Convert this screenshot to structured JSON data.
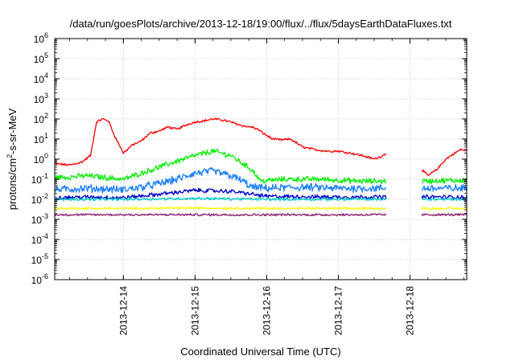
{
  "chart_data": {
    "type": "line",
    "title": "/data/run/goesPlots/archive/2013-12-18/19:00/flux/../flux/5daysEarthDataFluxes.txt",
    "xlabel": "Coordinated Universal Time (UTC)",
    "ylabel_parts": [
      "protons/cm",
      "2",
      "-s-sr-MeV"
    ],
    "y_scale": "log",
    "ylim": [
      1e-06,
      1000000.0
    ],
    "xlim": [
      "2013-12-13 01:00",
      "2013-12-18 19:00"
    ],
    "grid": true,
    "legend": "none",
    "x_ticks": [
      "2013-12-14",
      "2013-12-15",
      "2013-12-16",
      "2013-12-17",
      "2013-12-18"
    ],
    "y_ticks": [
      {
        "base": "10",
        "exp": "-6"
      },
      {
        "base": "10",
        "exp": "-5"
      },
      {
        "base": "10",
        "exp": "-4"
      },
      {
        "base": "10",
        "exp": "-3"
      },
      {
        "base": "10",
        "exp": "-2"
      },
      {
        "base": "10",
        "exp": "-1"
      },
      {
        "base": "10",
        "exp": "0"
      },
      {
        "base": "10",
        "exp": "1"
      },
      {
        "base": "10",
        "exp": "2"
      },
      {
        "base": "10",
        "exp": "3"
      },
      {
        "base": "10",
        "exp": "4"
      },
      {
        "base": "10",
        "exp": "5"
      },
      {
        "base": "10",
        "exp": "6"
      }
    ],
    "data_gap": [
      "2013-12-17 16:00",
      "2013-12-18 04:00"
    ],
    "series": [
      {
        "color": "#ff0000",
        "noise": 0.05,
        "x": [
          "2013-12-13 01:00",
          "2013-12-13 06:00",
          "2013-12-13 10:00",
          "2013-12-13 13:00",
          "2013-12-13 15:00",
          "2013-12-13 17:00",
          "2013-12-13 19:00",
          "2013-12-13 21:00",
          "2013-12-13 23:00",
          "2013-12-14 00:00",
          "2013-12-14 03:00",
          "2013-12-14 06:00",
          "2013-12-14 09:00",
          "2013-12-14 12:00",
          "2013-12-14 15:00",
          "2013-12-14 18:00",
          "2013-12-14 21:00",
          "2013-12-15 00:00",
          "2013-12-15 03:00",
          "2013-12-15 06:00",
          "2013-12-15 09:00",
          "2013-12-15 12:00",
          "2013-12-15 15:00",
          "2013-12-15 18:00",
          "2013-12-15 19:00",
          "2013-12-15 21:00",
          "2013-12-16 00:00",
          "2013-12-16 02:00",
          "2013-12-16 05:00",
          "2013-12-16 08:00",
          "2013-12-16 12:00",
          "2013-12-16 16:00",
          "2013-12-16 20:00",
          "2013-12-17 00:00",
          "2013-12-17 04:00",
          "2013-12-17 08:00",
          "2013-12-17 12:00",
          "2013-12-17 15:00",
          "2013-12-17 16:00",
          "2013-12-18 04:00",
          "2013-12-18 06:00",
          "2013-12-18 09:00",
          "2013-12-18 12:00",
          "2013-12-18 15:00",
          "2013-12-18 17:00",
          "2013-12-18 19:00"
        ],
        "y": [
          0.6,
          0.5,
          0.7,
          1.5,
          70,
          100,
          80,
          15,
          4,
          2,
          5,
          8,
          20,
          25,
          40,
          30,
          50,
          70,
          80,
          100,
          90,
          70,
          50,
          40,
          40,
          30,
          15,
          10,
          9,
          10,
          4,
          3,
          2.5,
          2.5,
          2,
          1.5,
          1.0,
          1.5,
          2.0,
          0.3,
          0.15,
          0.3,
          1,
          2,
          3,
          2.5
        ]
      },
      {
        "color": "#00ee00",
        "noise": 0.12,
        "x": [
          "2013-12-13 01:00",
          "2013-12-13 06:00",
          "2013-12-13 12:00",
          "2013-12-13 18:00",
          "2013-12-14 00:00",
          "2013-12-14 06:00",
          "2013-12-14 12:00",
          "2013-12-14 18:00",
          "2013-12-15 00:00",
          "2013-12-15 06:00",
          "2013-12-15 12:00",
          "2013-12-15 16:00",
          "2013-12-15 19:00",
          "2013-12-15 22:00",
          "2013-12-16 06:00",
          "2013-12-16 18:00",
          "2013-12-17 06:00",
          "2013-12-17 16:00",
          "2013-12-18 04:00",
          "2013-12-18 19:00"
        ],
        "y": [
          0.12,
          0.13,
          0.15,
          0.12,
          0.1,
          0.2,
          0.4,
          0.8,
          1.5,
          2.5,
          1.5,
          0.6,
          0.3,
          0.08,
          0.1,
          0.1,
          0.08,
          0.08,
          0.08,
          0.09
        ]
      },
      {
        "color": "#1a7fff",
        "noise": 0.17,
        "x": [
          "2013-12-13 01:00",
          "2013-12-13 12:00",
          "2013-12-14 00:00",
          "2013-12-14 06:00",
          "2013-12-14 12:00",
          "2013-12-14 18:00",
          "2013-12-15 00:00",
          "2013-12-15 06:00",
          "2013-12-15 12:00",
          "2013-12-15 16:00",
          "2013-12-15 19:00",
          "2013-12-16 00:00",
          "2013-12-16 12:00",
          "2013-12-17 00:00",
          "2013-12-17 16:00",
          "2013-12-18 04:00",
          "2013-12-18 19:00"
        ],
        "y": [
          0.03,
          0.035,
          0.03,
          0.04,
          0.06,
          0.1,
          0.2,
          0.25,
          0.15,
          0.08,
          0.04,
          0.035,
          0.04,
          0.035,
          0.035,
          0.035,
          0.035
        ]
      },
      {
        "color": "#0000cc",
        "noise": 0.09,
        "x": [
          "2013-12-13 01:00",
          "2013-12-13 12:00",
          "2013-12-14 00:00",
          "2013-12-14 12:00",
          "2013-12-15 00:00",
          "2013-12-15 12:00",
          "2013-12-15 19:00",
          "2013-12-16 00:00",
          "2013-12-17 00:00",
          "2013-12-17 16:00",
          "2013-12-18 04:00",
          "2013-12-18 19:00"
        ],
        "y": [
          0.012,
          0.013,
          0.012,
          0.018,
          0.028,
          0.025,
          0.018,
          0.014,
          0.013,
          0.013,
          0.013,
          0.013
        ]
      },
      {
        "color": "#00c8c8",
        "noise": 0.06,
        "x": [
          "2013-12-13 01:00",
          "2013-12-14 00:00",
          "2013-12-15 00:00",
          "2013-12-16 00:00",
          "2013-12-17 00:00",
          "2013-12-17 16:00",
          "2013-12-18 04:00",
          "2013-12-18 19:00"
        ],
        "y": [
          0.01,
          0.01,
          0.011,
          0.01,
          0.01,
          0.01,
          0.01,
          0.01
        ]
      },
      {
        "color": "#ffff00",
        "noise": 0.05,
        "x": [
          "2013-12-13 01:00",
          "2013-12-14 00:00",
          "2013-12-15 00:00",
          "2013-12-16 00:00",
          "2013-12-17 00:00",
          "2013-12-17 16:00",
          "2013-12-18 04:00",
          "2013-12-18 19:00"
        ],
        "y": [
          0.0035,
          0.0035,
          0.0037,
          0.0035,
          0.0035,
          0.0035,
          0.0035,
          0.0035
        ]
      },
      {
        "color": "#8b1a6b",
        "noise": 0.05,
        "x": [
          "2013-12-13 01:00",
          "2013-12-14 00:00",
          "2013-12-15 00:00",
          "2013-12-16 00:00",
          "2013-12-17 00:00",
          "2013-12-17 16:00",
          "2013-12-18 04:00",
          "2013-12-18 19:00"
        ],
        "y": [
          0.0017,
          0.0017,
          0.0017,
          0.0017,
          0.0017,
          0.0017,
          0.0017,
          0.0017
        ]
      }
    ]
  }
}
